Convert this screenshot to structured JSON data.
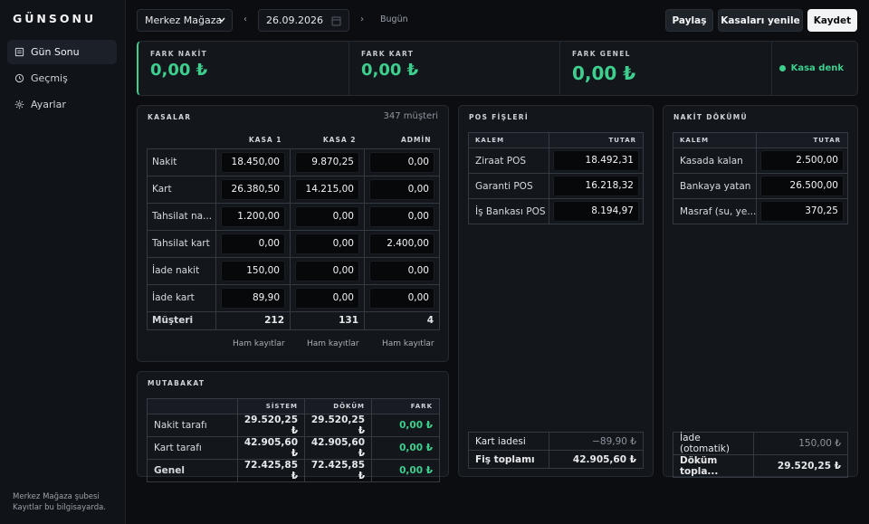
{
  "app": {
    "name": "GÜNSONU",
    "footer_line1": "Merkez Mağaza şubesi",
    "footer_line2": "Kayıtlar bu bilgisayarda."
  },
  "sidebar": {
    "items": [
      {
        "label": "Gün Sonu",
        "icon": "ledger-icon",
        "active": true
      },
      {
        "label": "Geçmiş",
        "icon": "clock-icon"
      },
      {
        "label": "Ayarlar",
        "icon": "gear-icon"
      }
    ]
  },
  "toolbar": {
    "branch": "Merkez Mağaza",
    "branch_options": [
      "Merkez Mağaza"
    ],
    "date": "26.09.2026",
    "prev": "‹",
    "next": "›",
    "today": "Bugün",
    "share": "Paylaş",
    "refresh": "Kasaları yenile",
    "save": "Kaydet"
  },
  "summary": {
    "cash_label": "FARK NAKİT",
    "cash_value": "0,00 ₺",
    "card_label": "FARK KART",
    "card_value": "0,00 ₺",
    "total_label": "FARK GENEL",
    "total_value": "0,00 ₺",
    "status": "Kasa denk",
    "accent_color": "#3ecf8e"
  },
  "registers": {
    "title": "KASALAR",
    "customers_total": "347 müşteri",
    "columns": [
      "KASA 1",
      "KASA 2",
      "ADMİN"
    ],
    "rows": [
      {
        "label": "Nakit",
        "values": [
          "18.450,00",
          "9.870,25",
          "0,00"
        ]
      },
      {
        "label": "Kart",
        "values": [
          "26.380,50",
          "14.215,00",
          "0,00"
        ]
      },
      {
        "label": "Tahsilat na...",
        "values": [
          "1.200,00",
          "0,00",
          "0,00"
        ]
      },
      {
        "label": "Tahsilat kart",
        "values": [
          "0,00",
          "0,00",
          "2.400,00"
        ]
      },
      {
        "label": "İade nakit",
        "values": [
          "150,00",
          "0,00",
          "0,00"
        ]
      },
      {
        "label": "İade kart",
        "values": [
          "89,90",
          "0,00",
          "0,00"
        ]
      }
    ],
    "customers_label": "Müşteri",
    "customers": [
      "212",
      "131",
      "4"
    ],
    "raw_link": "Ham kayıtlar"
  },
  "reconciliation": {
    "title": "MUTABAKAT",
    "columns": [
      "SİSTEM",
      "DÖKÜM",
      "FARK"
    ],
    "rows": [
      {
        "label": "Nakit tarafı",
        "system": "29.520,25 ₺",
        "count": "29.520,25 ₺",
        "diff": "0,00 ₺"
      },
      {
        "label": "Kart tarafı",
        "system": "42.905,60 ₺",
        "count": "42.905,60 ₺",
        "diff": "0,00 ₺"
      },
      {
        "label": "Genel",
        "system": "72.425,85 ₺",
        "count": "72.425,85 ₺",
        "diff": "0,00 ₺"
      }
    ]
  },
  "pos": {
    "title": "POS FİŞLERİ",
    "col_item": "KALEM",
    "col_amount": "TUTAR",
    "rows": [
      {
        "label": "Ziraat POS",
        "value": "18.492,31"
      },
      {
        "label": "Garanti POS",
        "value": "16.218,32"
      },
      {
        "label": "İş Bankası POS",
        "value": "8.194,97"
      }
    ],
    "refund_label": "Kart iadesi",
    "refund_value": "−89,90 ₺",
    "total_label": "Fiş toplamı",
    "total_value": "42.905,60 ₺"
  },
  "cash": {
    "title": "NAKİT DÖKÜMÜ",
    "col_item": "KALEM",
    "col_amount": "TUTAR",
    "rows": [
      {
        "label": "Kasada kalan",
        "value": "2.500,00"
      },
      {
        "label": "Bankaya yatan",
        "value": "26.500,00"
      },
      {
        "label": "Masraf (su, ye...",
        "value": "370,25"
      }
    ],
    "refund_label": "İade (otomatik)",
    "refund_value": "150,00 ₺",
    "total_label": "Döküm topla...",
    "total_value": "29.520,25 ₺"
  }
}
